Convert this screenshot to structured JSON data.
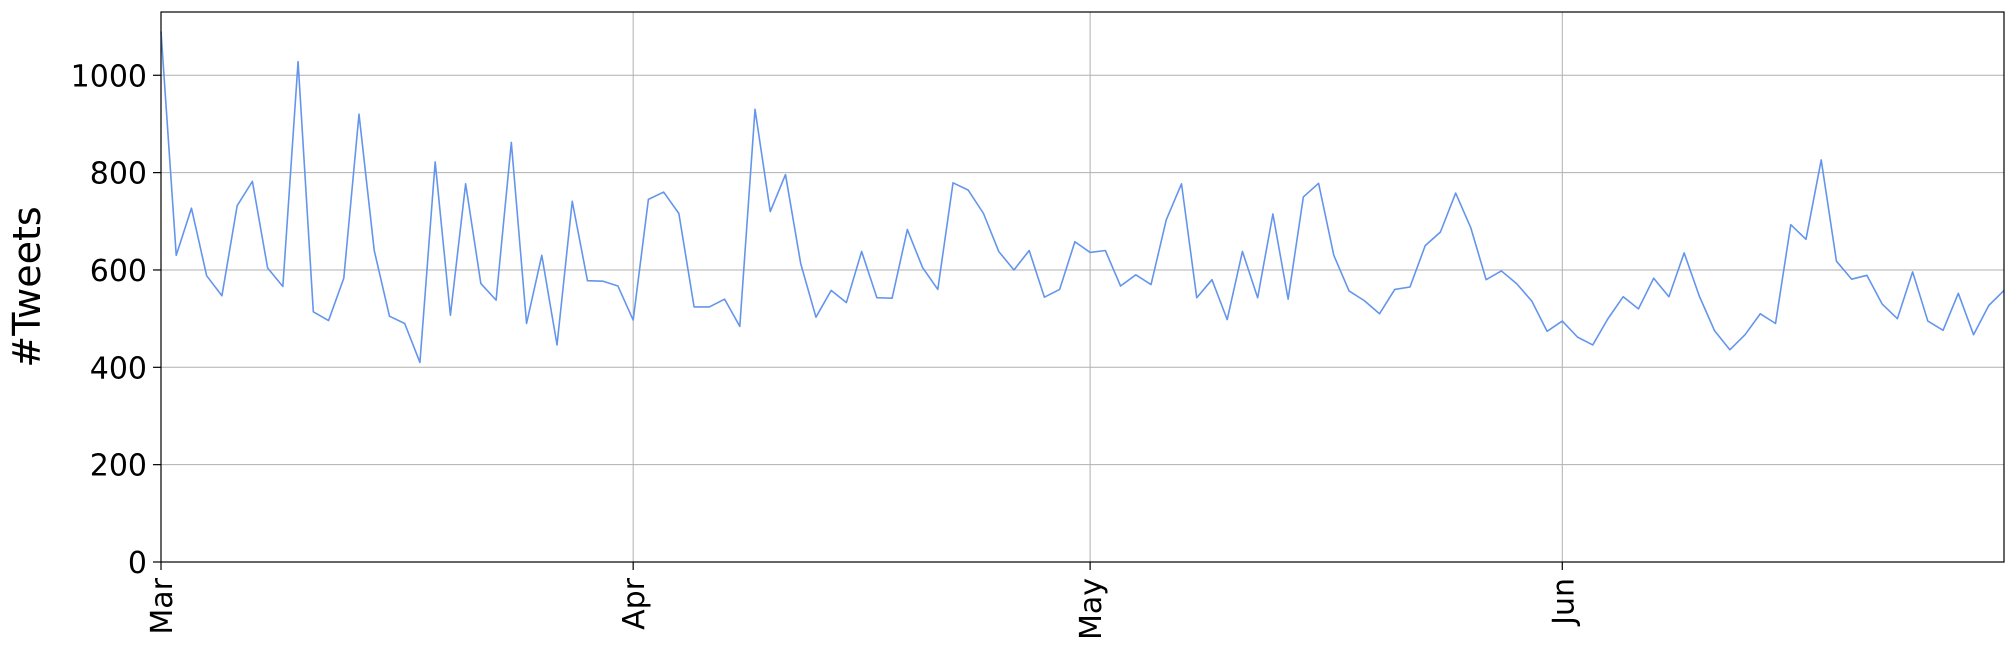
{
  "chart_data": {
    "type": "line",
    "title": "",
    "xlabel": "",
    "ylabel": "#Tweets",
    "x_start": "2017-03-01",
    "x_end": "2017-06-30",
    "xlim": [
      "2017-03-01",
      "2017-06-30"
    ],
    "ylim": [
      0,
      1130
    ],
    "yticks": [
      0,
      200,
      400,
      600,
      800,
      1000
    ],
    "xticks": [
      {
        "date": "2017-03-01",
        "label": "Mar"
      },
      {
        "date": "2017-04-01",
        "label": "Apr"
      },
      {
        "date": "2017-05-01",
        "label": "May"
      },
      {
        "date": "2017-06-01",
        "label": "Jun"
      }
    ],
    "grid": true,
    "line_color": "#6495ed",
    "series": [
      {
        "values": [
          1090,
          630,
          727,
          588,
          547,
          732,
          782,
          604,
          566,
          1028,
          514,
          496,
          583,
          920,
          640,
          505,
          490,
          410,
          822,
          507,
          777,
          572,
          538,
          862,
          490,
          630,
          446,
          741,
          578,
          577,
          567,
          497,
          745,
          760,
          716,
          524,
          524,
          540,
          484,
          930,
          720,
          796,
          613,
          503,
          558,
          533,
          638,
          543,
          542,
          683,
          605,
          560,
          779,
          764,
          716,
          638,
          600,
          640,
          544,
          560,
          658,
          636,
          640,
          567,
          590,
          570,
          703,
          777,
          543,
          580,
          498,
          638,
          543,
          715,
          540,
          750,
          778,
          630,
          557,
          537,
          510,
          560,
          565,
          650,
          678,
          758,
          686,
          580,
          598,
          572,
          536,
          474,
          495,
          462,
          446,
          500,
          545,
          520,
          583,
          545,
          635,
          546,
          475,
          436,
          467,
          510,
          490,
          693,
          663,
          826,
          618,
          581,
          589,
          530,
          500,
          596,
          495,
          476,
          552,
          467,
          527,
          558
        ]
      }
    ]
  }
}
